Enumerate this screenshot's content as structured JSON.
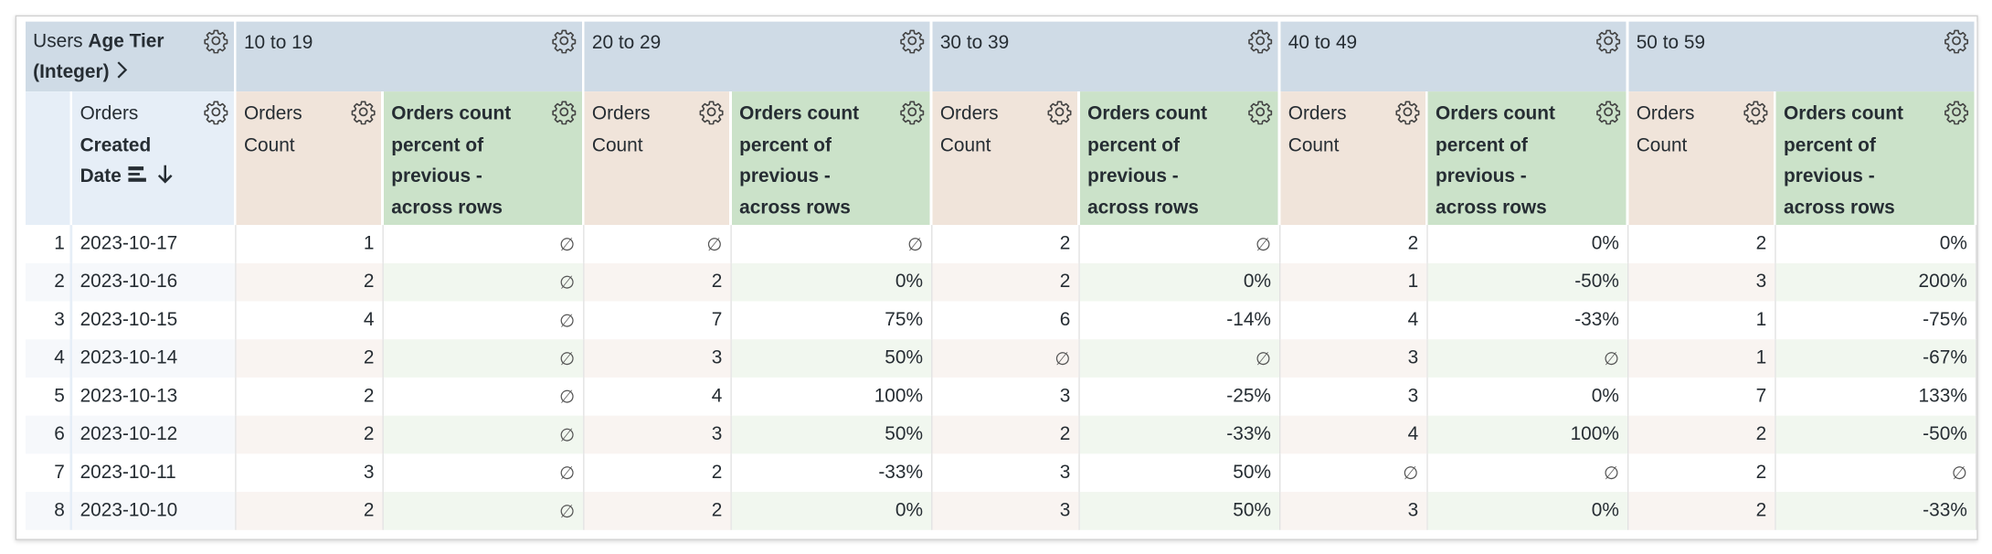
{
  "pivot_header": {
    "label_normal": "Users ",
    "label_bold": "Age Tier",
    "label_line2": "(Integer)",
    "expand_icon": "chevron-right-icon"
  },
  "dimension_header": {
    "line1": "Orders",
    "line2": "Created",
    "line3": "Date",
    "sort_icon": "arrow-down-icon",
    "freeze_icon": "pivot-icon"
  },
  "measure_headers": {
    "count": [
      "Orders",
      "Count"
    ],
    "pct": [
      "Orders count",
      "percent of",
      "previous -",
      "across rows"
    ]
  },
  "tiers": [
    "10 to 19",
    "20 to 29",
    "30 to 39",
    "40 to 49",
    "50 to 59"
  ],
  "null_symbol": "∅",
  "rows": [
    {
      "n": "1",
      "date": "2023-10-17",
      "cells": [
        [
          "1",
          "∅"
        ],
        [
          "∅",
          "∅"
        ],
        [
          "2",
          "∅"
        ],
        [
          "2",
          "0%"
        ],
        [
          "2",
          "0%"
        ]
      ]
    },
    {
      "n": "2",
      "date": "2023-10-16",
      "cells": [
        [
          "2",
          "∅"
        ],
        [
          "2",
          "0%"
        ],
        [
          "2",
          "0%"
        ],
        [
          "1",
          "-50%"
        ],
        [
          "3",
          "200%"
        ]
      ]
    },
    {
      "n": "3",
      "date": "2023-10-15",
      "cells": [
        [
          "4",
          "∅"
        ],
        [
          "7",
          "75%"
        ],
        [
          "6",
          "-14%"
        ],
        [
          "4",
          "-33%"
        ],
        [
          "1",
          "-75%"
        ]
      ]
    },
    {
      "n": "4",
      "date": "2023-10-14",
      "cells": [
        [
          "2",
          "∅"
        ],
        [
          "3",
          "50%"
        ],
        [
          "∅",
          "∅"
        ],
        [
          "3",
          "∅"
        ],
        [
          "1",
          "-67%"
        ]
      ]
    },
    {
      "n": "5",
      "date": "2023-10-13",
      "cells": [
        [
          "2",
          "∅"
        ],
        [
          "4",
          "100%"
        ],
        [
          "3",
          "-25%"
        ],
        [
          "3",
          "0%"
        ],
        [
          "7",
          "133%"
        ]
      ]
    },
    {
      "n": "6",
      "date": "2023-10-12",
      "cells": [
        [
          "2",
          "∅"
        ],
        [
          "3",
          "50%"
        ],
        [
          "2",
          "-33%"
        ],
        [
          "4",
          "100%"
        ],
        [
          "2",
          "-50%"
        ]
      ]
    },
    {
      "n": "7",
      "date": "2023-10-11",
      "cells": [
        [
          "3",
          "∅"
        ],
        [
          "2",
          "-33%"
        ],
        [
          "3",
          "50%"
        ],
        [
          "∅",
          "∅"
        ],
        [
          "2",
          "∅"
        ]
      ]
    },
    {
      "n": "8",
      "date": "2023-10-10",
      "cells": [
        [
          "2",
          "∅"
        ],
        [
          "2",
          "0%"
        ],
        [
          "3",
          "50%"
        ],
        [
          "3",
          "0%"
        ],
        [
          "2",
          "-33%"
        ]
      ]
    }
  ],
  "colors": {
    "tier_header": "#cfdbe6",
    "dimension_header": "#e6eef7",
    "count_header": "#f0e4da",
    "pct_header": "#cbe2c9"
  }
}
